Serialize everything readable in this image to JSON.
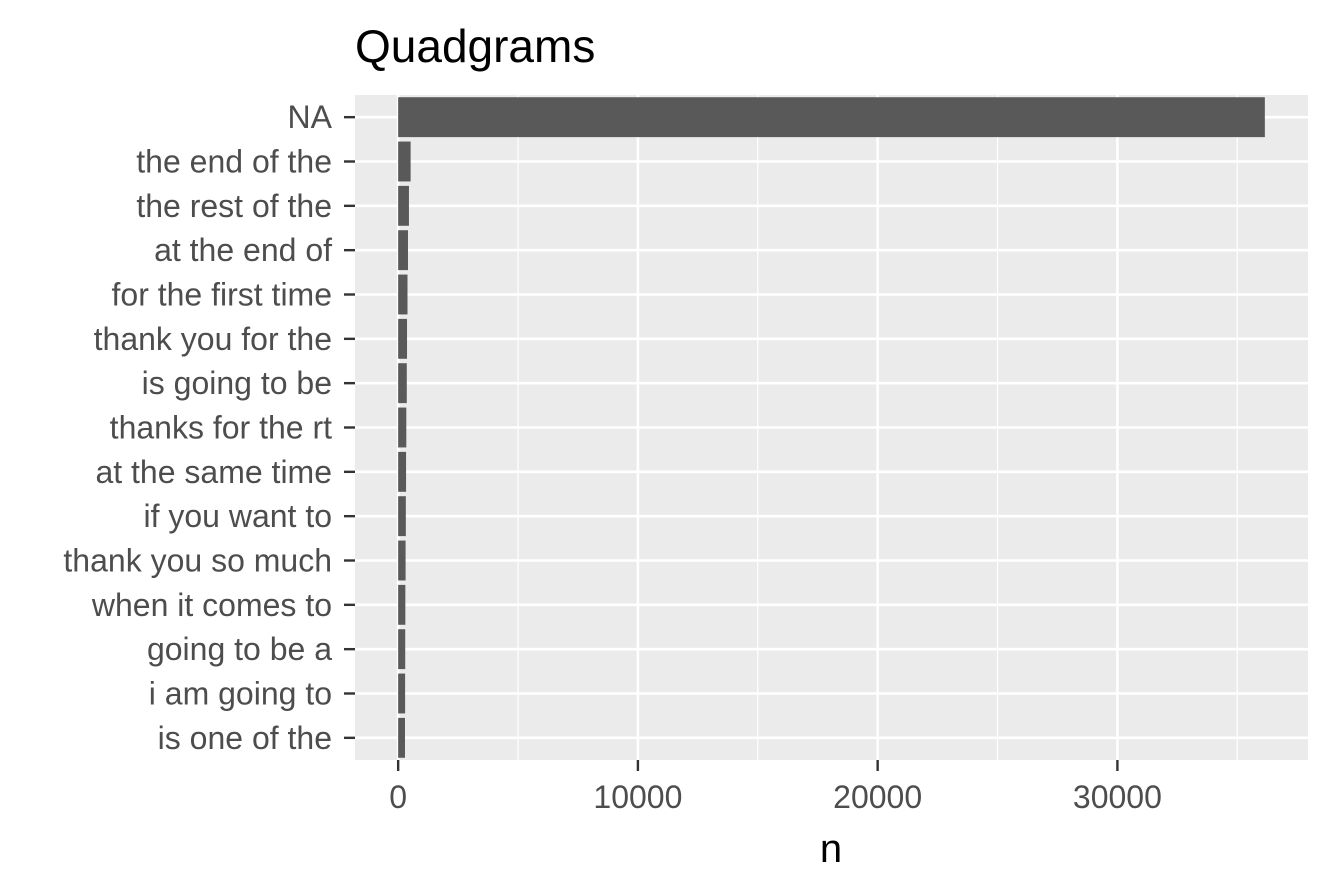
{
  "chart_data": {
    "type": "bar",
    "orientation": "horizontal",
    "title": "Quadgrams",
    "xlabel": "n",
    "ylabel": "",
    "categories": [
      "NA",
      "the end of the",
      "the rest of the",
      "at the end of",
      "for the first time",
      "thank you for the",
      "is going to be",
      "thanks for the rt",
      "at the same time",
      "if you want to",
      "thank you so much",
      "when it comes to",
      "going to be a",
      "i am going to",
      "is one of the"
    ],
    "values": [
      36150,
      520,
      450,
      410,
      390,
      370,
      360,
      340,
      330,
      320,
      310,
      300,
      295,
      290,
      285
    ],
    "xlim": [
      -1800,
      37950
    ],
    "xticks": [
      0,
      10000,
      20000,
      30000
    ],
    "xtick_labels": [
      "0",
      "10000",
      "20000",
      "30000"
    ],
    "grid": true,
    "bar_color": "#595959",
    "panel_background": "#ebebeb",
    "grid_color": "#ffffff"
  }
}
